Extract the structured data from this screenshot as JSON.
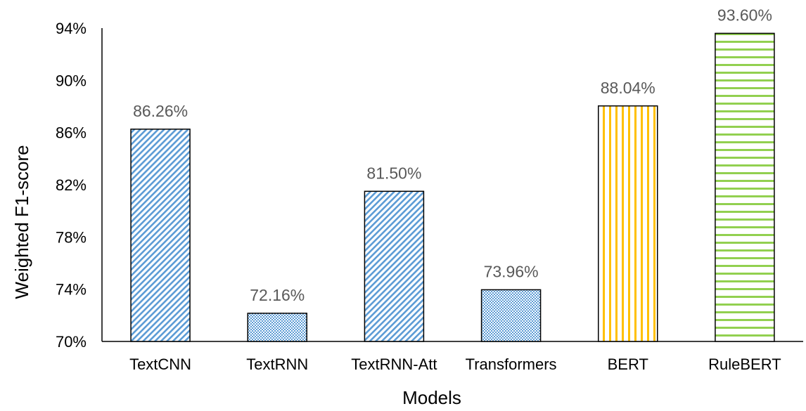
{
  "chart_data": {
    "type": "bar",
    "categories": [
      "TextCNN",
      "TextRNN",
      "TextRNN-Att",
      "Transformers",
      "BERT",
      "RuleBERT"
    ],
    "values": [
      86.26,
      72.16,
      81.5,
      73.96,
      88.04,
      93.6
    ],
    "data_labels": [
      "86.26%",
      "72.16%",
      "81.50%",
      "73.96%",
      "88.04%",
      "93.60%"
    ],
    "title": "",
    "xlabel": "Models",
    "ylabel": "Weighted F1-score",
    "ylim": [
      70,
      94
    ],
    "yticks": [
      70,
      74,
      78,
      82,
      86,
      90,
      94
    ],
    "ytick_labels": [
      "70%",
      "74%",
      "78%",
      "82%",
      "86%",
      "90%",
      "94%"
    ],
    "grid": false,
    "legend": "none",
    "patterns": [
      "diagonal-blue",
      "crosshatch-blue",
      "diagonal-blue",
      "crosshatch-blue",
      "vertical-yellow",
      "horizontal-green"
    ],
    "colors": {
      "blue": "#5b9bd5",
      "yellow": "#ffc000",
      "green": "#92d050",
      "outline": "#000000",
      "label": "#595959"
    }
  }
}
